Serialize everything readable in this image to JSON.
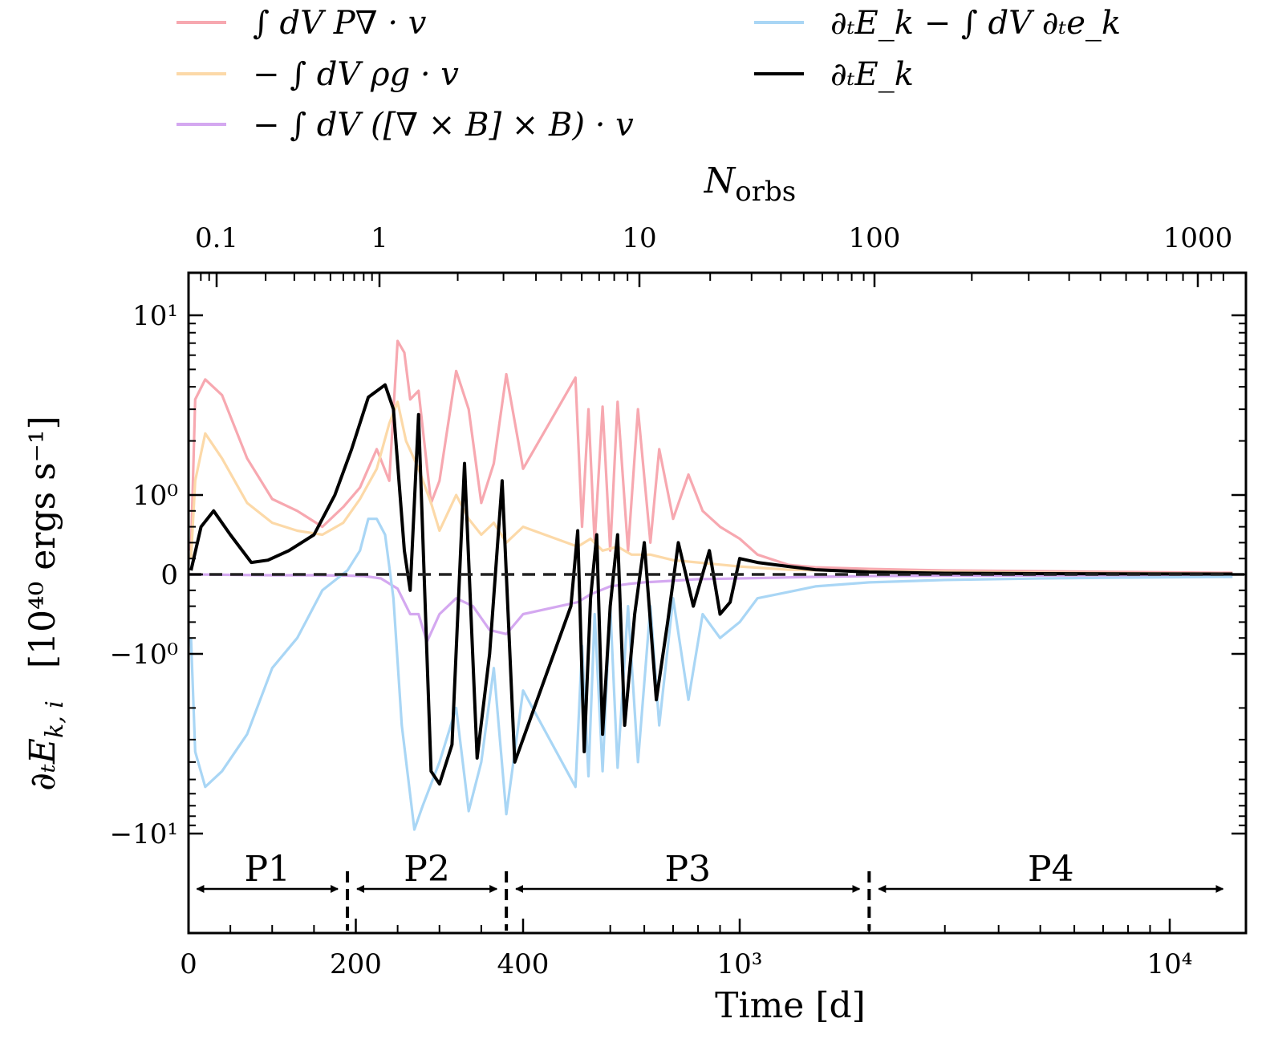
{
  "chart_data": {
    "type": "line",
    "xlabel": "Time    [d]",
    "ylabel_sym": "∂ₜE",
    "ylabel_sub": "k, i",
    "ylabel_unit": "[10⁴⁰ ergs s⁻¹]",
    "top_xlabel": "N",
    "top_xlabel_sub": "orbs",
    "x_scale": "linear below ~400 d, logarithmic above",
    "y_scale": "symmetric log (linear near 0)",
    "x_ticks": [
      {
        "value": 0,
        "label": "0"
      },
      {
        "value": 200,
        "label": "200"
      },
      {
        "value": 400,
        "label": "400"
      },
      {
        "value": 1000,
        "label": "10³"
      },
      {
        "value": 10000,
        "label": "10⁴"
      }
    ],
    "top_ticks": [
      {
        "value": 0.1,
        "label": "0.1"
      },
      {
        "value": 1,
        "label": "1"
      },
      {
        "value": 10,
        "label": "10"
      },
      {
        "value": 100,
        "label": "100"
      },
      {
        "value": 1000,
        "label": "1000"
      }
    ],
    "y_ticks": [
      {
        "value": 10,
        "label": "10¹"
      },
      {
        "value": 1,
        "label": "10⁰"
      },
      {
        "value": 0,
        "label": "0"
      },
      {
        "value": -1,
        "label": "−10⁰"
      },
      {
        "value": -10,
        "label": "−10¹"
      }
    ],
    "phases": [
      {
        "label": "P1",
        "start": 10,
        "end": 190
      },
      {
        "label": "P2",
        "start": 190,
        "end": 380
      },
      {
        "label": "P3",
        "start": 380,
        "end": 2000
      },
      {
        "label": "P4",
        "start": 2000,
        "end": 14000
      }
    ],
    "phase_boundaries": [
      190,
      380,
      2000
    ],
    "series": [
      {
        "name": "∫ dV P∇ · v",
        "color": "#f7a8b0",
        "points": [
          [
            3,
            0.3
          ],
          [
            8,
            3.4
          ],
          [
            20,
            4.4
          ],
          [
            40,
            3.6
          ],
          [
            70,
            1.6
          ],
          [
            100,
            0.95
          ],
          [
            130,
            0.8
          ],
          [
            160,
            0.6
          ],
          [
            185,
            0.85
          ],
          [
            205,
            1.1
          ],
          [
            225,
            1.8
          ],
          [
            240,
            1.2
          ],
          [
            250,
            7.2
          ],
          [
            258,
            6.2
          ],
          [
            265,
            3.4
          ],
          [
            275,
            3.8
          ],
          [
            290,
            0.9
          ],
          [
            300,
            1.2
          ],
          [
            320,
            4.9
          ],
          [
            335,
            3.0
          ],
          [
            350,
            0.9
          ],
          [
            365,
            1.5
          ],
          [
            380,
            4.7
          ],
          [
            400,
            1.4
          ],
          [
            415,
            4.5
          ],
          [
            430,
            0.6
          ],
          [
            445,
            3.0
          ],
          [
            460,
            0.4
          ],
          [
            480,
            3.1
          ],
          [
            500,
            0.3
          ],
          [
            520,
            3.3
          ],
          [
            550,
            0.3
          ],
          [
            580,
            3.0
          ],
          [
            620,
            0.4
          ],
          [
            650,
            1.8
          ],
          [
            700,
            0.7
          ],
          [
            760,
            1.3
          ],
          [
            820,
            0.8
          ],
          [
            900,
            0.6
          ],
          [
            1000,
            0.45
          ],
          [
            1100,
            0.25
          ],
          [
            1300,
            0.12
          ],
          [
            1500,
            0.09
          ],
          [
            2000,
            0.07
          ],
          [
            3000,
            0.05
          ],
          [
            5000,
            0.04
          ],
          [
            8000,
            0.03
          ],
          [
            14000,
            0.02
          ]
        ]
      },
      {
        "name": "− ∫ dV ρg · v",
        "color": "#fcd9a8",
        "points": [
          [
            3,
            0.2
          ],
          [
            8,
            1.2
          ],
          [
            20,
            2.2
          ],
          [
            40,
            1.6
          ],
          [
            70,
            0.9
          ],
          [
            100,
            0.65
          ],
          [
            130,
            0.55
          ],
          [
            160,
            0.5
          ],
          [
            185,
            0.65
          ],
          [
            205,
            0.95
          ],
          [
            225,
            1.4
          ],
          [
            240,
            2.5
          ],
          [
            250,
            3.3
          ],
          [
            260,
            2.0
          ],
          [
            275,
            1.4
          ],
          [
            290,
            0.9
          ],
          [
            300,
            0.55
          ],
          [
            320,
            1.0
          ],
          [
            335,
            0.7
          ],
          [
            350,
            0.5
          ],
          [
            365,
            0.65
          ],
          [
            380,
            0.4
          ],
          [
            400,
            0.6
          ],
          [
            420,
            0.35
          ],
          [
            450,
            0.45
          ],
          [
            480,
            0.3
          ],
          [
            520,
            0.35
          ],
          [
            560,
            0.25
          ],
          [
            620,
            0.25
          ],
          [
            700,
            0.18
          ],
          [
            800,
            0.15
          ],
          [
            1000,
            0.1
          ],
          [
            1300,
            0.06
          ],
          [
            2000,
            0.04
          ],
          [
            5000,
            0.02
          ],
          [
            14000,
            0.01
          ]
        ]
      },
      {
        "name": "− ∫ dV ([∇ × B] × B) · v",
        "color": "#d4a8f0",
        "points": [
          [
            3,
            0.0
          ],
          [
            50,
            -0.005
          ],
          [
            100,
            -0.01
          ],
          [
            150,
            -0.01
          ],
          [
            190,
            -0.015
          ],
          [
            210,
            -0.02
          ],
          [
            230,
            -0.05
          ],
          [
            250,
            -0.18
          ],
          [
            265,
            -0.5
          ],
          [
            275,
            -0.5
          ],
          [
            285,
            -0.85
          ],
          [
            300,
            -0.5
          ],
          [
            320,
            -0.3
          ],
          [
            340,
            -0.4
          ],
          [
            360,
            -0.7
          ],
          [
            380,
            -0.75
          ],
          [
            400,
            -0.5
          ],
          [
            420,
            -0.35
          ],
          [
            450,
            -0.25
          ],
          [
            500,
            -0.15
          ],
          [
            550,
            -0.12
          ],
          [
            600,
            -0.1
          ],
          [
            700,
            -0.08
          ],
          [
            800,
            -0.06
          ],
          [
            1000,
            -0.05
          ],
          [
            1500,
            -0.03
          ],
          [
            2000,
            -0.02
          ],
          [
            4000,
            -0.015
          ],
          [
            8000,
            -0.01
          ],
          [
            14000,
            -0.005
          ]
        ]
      },
      {
        "name": "∂ₜE_k − ∫ dV ∂ₜe_k",
        "color": "#a9d6f5",
        "points": [
          [
            3,
            -0.8
          ],
          [
            8,
            -3.5
          ],
          [
            20,
            -5.5
          ],
          [
            40,
            -4.5
          ],
          [
            70,
            -2.8
          ],
          [
            100,
            -1.2
          ],
          [
            130,
            -0.8
          ],
          [
            160,
            -0.2
          ],
          [
            190,
            0.05
          ],
          [
            205,
            0.3
          ],
          [
            215,
            0.7
          ],
          [
            225,
            0.7
          ],
          [
            235,
            0.5
          ],
          [
            245,
            -0.3
          ],
          [
            255,
            -2.5
          ],
          [
            270,
            -9.5
          ],
          [
            280,
            -7.0
          ],
          [
            300,
            -4.0
          ],
          [
            320,
            -2.0
          ],
          [
            335,
            -7.5
          ],
          [
            350,
            -4.0
          ],
          [
            365,
            -1.2
          ],
          [
            380,
            -7.8
          ],
          [
            400,
            -1.6
          ],
          [
            415,
            -5.5
          ],
          [
            430,
            -0.9
          ],
          [
            445,
            -4.8
          ],
          [
            460,
            -0.5
          ],
          [
            480,
            -4.5
          ],
          [
            500,
            -0.4
          ],
          [
            520,
            -4.3
          ],
          [
            550,
            -0.4
          ],
          [
            580,
            -4.0
          ],
          [
            620,
            -0.4
          ],
          [
            650,
            -2.5
          ],
          [
            700,
            -0.3
          ],
          [
            760,
            -1.8
          ],
          [
            820,
            -0.5
          ],
          [
            900,
            -0.8
          ],
          [
            1000,
            -0.6
          ],
          [
            1100,
            -0.3
          ],
          [
            1300,
            -0.22
          ],
          [
            1500,
            -0.15
          ],
          [
            2000,
            -0.1
          ],
          [
            3000,
            -0.07
          ],
          [
            5000,
            -0.05
          ],
          [
            8000,
            -0.04
          ],
          [
            14000,
            -0.03
          ]
        ]
      },
      {
        "name": "∂ₜE_k",
        "color": "#000000",
        "points": [
          [
            3,
            0.05
          ],
          [
            15,
            0.6
          ],
          [
            30,
            0.8
          ],
          [
            50,
            0.5
          ],
          [
            75,
            0.15
          ],
          [
            95,
            0.18
          ],
          [
            120,
            0.3
          ],
          [
            150,
            0.5
          ],
          [
            175,
            1.0
          ],
          [
            195,
            1.8
          ],
          [
            215,
            3.5
          ],
          [
            235,
            4.1
          ],
          [
            245,
            3.0
          ],
          [
            258,
            0.3
          ],
          [
            265,
            -0.2
          ],
          [
            275,
            2.8
          ],
          [
            285,
            -1.0
          ],
          [
            290,
            -4.5
          ],
          [
            300,
            -5.3
          ],
          [
            315,
            -3.2
          ],
          [
            330,
            1.5
          ],
          [
            345,
            -3.8
          ],
          [
            360,
            -1.0
          ],
          [
            375,
            1.2
          ],
          [
            390,
            -4.0
          ],
          [
            405,
            -0.4
          ],
          [
            420,
            0.55
          ],
          [
            435,
            -3.5
          ],
          [
            450,
            -0.3
          ],
          [
            465,
            0.5
          ],
          [
            480,
            -2.8
          ],
          [
            500,
            -0.4
          ],
          [
            520,
            0.5
          ],
          [
            540,
            -2.5
          ],
          [
            570,
            -0.5
          ],
          [
            600,
            0.4
          ],
          [
            640,
            -1.8
          ],
          [
            680,
            -0.6
          ],
          [
            720,
            0.4
          ],
          [
            780,
            -0.4
          ],
          [
            850,
            0.3
          ],
          [
            900,
            -0.5
          ],
          [
            950,
            -0.35
          ],
          [
            1000,
            0.2
          ],
          [
            1100,
            0.15
          ],
          [
            1300,
            0.1
          ],
          [
            1500,
            0.06
          ],
          [
            2000,
            0.03
          ],
          [
            3000,
            0.015
          ],
          [
            5000,
            0.01
          ],
          [
            14000,
            0.005
          ]
        ]
      }
    ],
    "zero_line": "dashed horizontal line at y = 0",
    "legend_placement": "top, two columns"
  }
}
